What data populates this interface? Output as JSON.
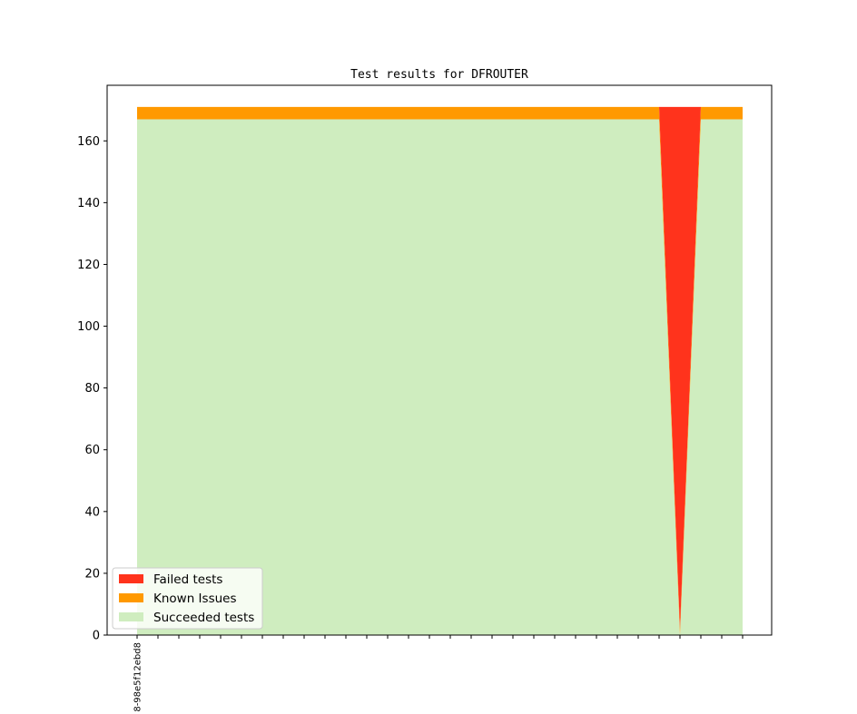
{
  "chart_data": {
    "type": "area",
    "stacked": true,
    "title": "Test results for DFROUTER",
    "xlabel": "",
    "ylabel": "",
    "ylim": [
      0,
      178
    ],
    "yticks": [
      0,
      20,
      40,
      60,
      80,
      100,
      120,
      140,
      160
    ],
    "n_points": 30,
    "x_tick_labels": [
      "8-98e5f12ebd8"
    ],
    "grid": false,
    "legend_position": "lower-left",
    "colors": {
      "failed": "#ff331c",
      "known": "#ff9900",
      "succeeded": "#cfedbf"
    },
    "series": [
      {
        "name": "Succeeded tests",
        "color_key": "succeeded",
        "values": [
          167,
          167,
          167,
          167,
          167,
          167,
          167,
          167,
          167,
          167,
          167,
          167,
          167,
          167,
          167,
          167,
          167,
          167,
          167,
          167,
          167,
          167,
          167,
          167,
          167,
          167,
          0,
          167,
          167,
          167
        ]
      },
      {
        "name": "Known Issues",
        "color_key": "known",
        "values": [
          4,
          4,
          4,
          4,
          4,
          4,
          4,
          4,
          4,
          4,
          4,
          4,
          4,
          4,
          4,
          4,
          4,
          4,
          4,
          4,
          4,
          4,
          4,
          4,
          4,
          4,
          2,
          4,
          4,
          4
        ]
      },
      {
        "name": "Failed tests",
        "color_key": "failed",
        "values": [
          0,
          0,
          0,
          0,
          0,
          0,
          0,
          0,
          0,
          0,
          0,
          0,
          0,
          0,
          0,
          0,
          0,
          0,
          0,
          0,
          0,
          0,
          0,
          0,
          0,
          0,
          169,
          0,
          0,
          0
        ]
      }
    ],
    "legend": [
      "Failed tests",
      "Known Issues",
      "Succeeded tests"
    ]
  }
}
